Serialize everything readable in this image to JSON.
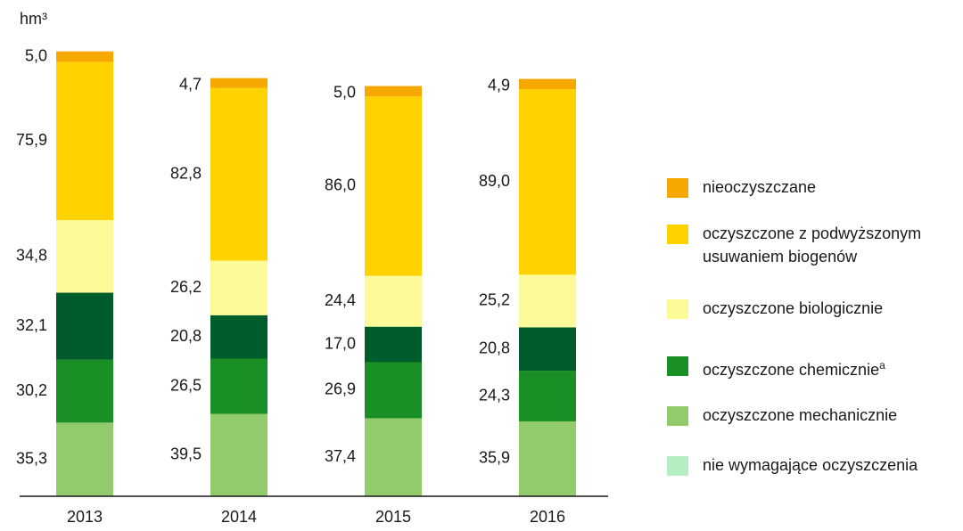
{
  "chart_data": {
    "type": "stacked_bar",
    "y_label": "hm³",
    "categories": [
      "2013",
      "2014",
      "2015",
      "2016"
    ],
    "ylim": [
      0,
      220
    ],
    "series": [
      {
        "name": "nieoczyszczane",
        "color": "#f7a800",
        "values": [
          5.0,
          4.7,
          5.0,
          4.9
        ],
        "value_labels": [
          "5,0",
          "4,7",
          "5,0",
          "4,9"
        ]
      },
      {
        "name": "oczyszczone z podwyższonym usuwaniem biogenów",
        "color": "#ffd200",
        "values": [
          75.9,
          82.8,
          86.0,
          89.0
        ],
        "value_labels": [
          "75,9",
          "82,8",
          "86,0",
          "89,0"
        ]
      },
      {
        "name": "oczyszczone biologicznie",
        "color": "#fdfb99",
        "values": [
          34.8,
          26.2,
          24.4,
          25.2
        ],
        "value_labels": [
          "34,8",
          "26,2",
          "24,4",
          "25,2"
        ]
      },
      {
        "name": "oczyszczone chemicznie",
        "note_mark": "a",
        "color": "#1a8f25",
        "values": [
          30.2,
          26.5,
          26.9,
          24.3
        ],
        "value_labels": [
          "30,2",
          "26,5",
          "26,9",
          "24,3"
        ]
      },
      {
        "name": "oczyszczone mechanicznie",
        "color": "#92cb6c",
        "values": [
          35.3,
          39.5,
          37.4,
          35.9
        ],
        "value_labels": [
          "35,3",
          "39,5",
          "37,4",
          "35,9"
        ]
      },
      {
        "name": "nie wymagające oczyszczenia",
        "color": "#b3efc3",
        "values": [
          null,
          null,
          null,
          null
        ]
      },
      {
        "color": "#005c2b",
        "values": [
          32.1,
          20.8,
          17.0,
          20.8
        ],
        "value_labels": [
          "32,1",
          "20,8",
          "17,0",
          "20,8"
        ]
      }
    ]
  }
}
